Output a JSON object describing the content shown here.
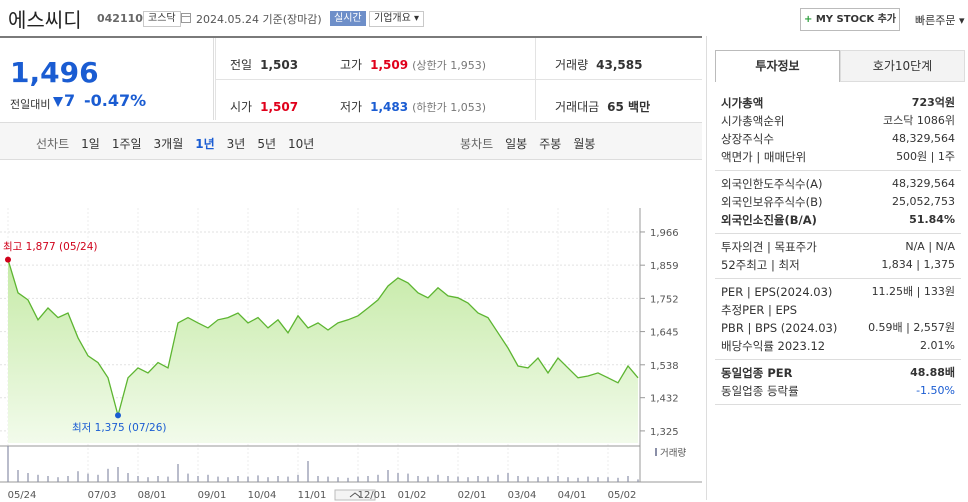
{
  "header": {
    "name": "에스씨디",
    "code": "042110",
    "market": "코스닥",
    "date": "2024.05.24 기준(장마감)",
    "status": "실시간",
    "overview": "기업개요",
    "mystock": "MY STOCK 추가",
    "quick_order": "빠른주문"
  },
  "price": {
    "now": "1,496",
    "change_label": "전일대비",
    "change": "7",
    "rate": "-0.47%"
  },
  "summary": [
    [
      {
        "label": "전일",
        "value": "1,503"
      },
      {
        "label": "고가",
        "value": "1,509",
        "extra": "(상한가 1,953)"
      },
      {
        "label": "거래량",
        "value": "43,585"
      }
    ],
    [
      {
        "label": "시가",
        "value": "1,507"
      },
      {
        "label": "저가",
        "value": "1,483",
        "extra": "(하한가 1,053)"
      },
      {
        "label": "거래대금",
        "value": "65 백만"
      }
    ]
  ],
  "tabs": {
    "line_label": "선차트",
    "line": [
      "1일",
      "1주일",
      "3개월",
      "1년",
      "3년",
      "5년",
      "10년"
    ],
    "candle_label": "봉차트",
    "candle": [
      "일봉",
      "주봉",
      "월봉"
    ]
  },
  "chart": {
    "type": "line",
    "color": "#5db531",
    "categories": [
      "05/24",
      null,
      null,
      null,
      null,
      null,
      null,
      null,
      "07/03",
      null,
      null,
      null,
      null,
      "08/01",
      null,
      null,
      null,
      null,
      null,
      "09/01",
      null,
      null,
      null,
      null,
      "10/04",
      null,
      null,
      null,
      null,
      "11/01",
      null,
      null,
      null,
      null,
      null,
      "12/01",
      null,
      null,
      null,
      "01/02",
      null,
      null,
      null,
      null,
      null,
      "02/01",
      null,
      null,
      null,
      null,
      "03/04",
      null,
      null,
      null,
      null,
      "04/01",
      null,
      null,
      null,
      null,
      "05/02",
      null,
      null,
      null
    ],
    "values": [
      1877,
      1770,
      1747,
      1683,
      1721,
      1690,
      1705,
      1625,
      1567,
      1545,
      1496,
      1375,
      1496,
      1528,
      1512,
      1545,
      1528,
      1673,
      1690,
      1673,
      1657,
      1683,
      1690,
      1705,
      1673,
      1690,
      1657,
      1683,
      1641,
      1696,
      1657,
      1673,
      1650,
      1673,
      1683,
      1696,
      1721,
      1747,
      1792,
      1818,
      1802,
      1770,
      1754,
      1786,
      1760,
      1754,
      1737,
      1705,
      1690,
      1641,
      1592,
      1534,
      1528,
      1560,
      1512,
      1560,
      1528,
      1496,
      1502,
      1512,
      1496,
      1480,
      1534,
      1496
    ],
    "ylim": [
      1286,
      2011
    ],
    "yticks": [
      {
        "value": 1325,
        "label": "1,325"
      },
      {
        "value": 1432,
        "label": "1,432"
      },
      {
        "value": 1538,
        "label": "1,538"
      },
      {
        "value": 1645,
        "label": "1,645"
      },
      {
        "value": 1752,
        "label": "1,752"
      },
      {
        "value": 1859,
        "label": "1,859"
      },
      {
        "value": 1966,
        "label": "1,966"
      }
    ],
    "high_label": "최고 1,877 (05/24)",
    "low_label": "최저 1,375 (07/26)",
    "volume": {
      "name": "거래량",
      "color": "#8a8fa8",
      "values": [
        600000,
        200000,
        150000,
        120000,
        100000,
        80000,
        100000,
        180000,
        140000,
        120000,
        220000,
        250000,
        150000,
        100000,
        80000,
        100000,
        90000,
        300000,
        140000,
        100000,
        120000,
        90000,
        80000,
        100000,
        90000,
        110000,
        80000,
        100000,
        90000,
        120000,
        350000,
        100000,
        90000,
        80000,
        70000,
        90000,
        100000,
        120000,
        200000,
        150000,
        140000,
        100000,
        90000,
        120000,
        100000,
        90000,
        80000,
        100000,
        90000,
        120000,
        150000,
        100000,
        90000,
        80000,
        90000,
        100000,
        80000,
        70000,
        90000,
        80000,
        80000,
        70000,
        100000,
        43585
      ]
    }
  },
  "side": {
    "tabs": [
      "투자정보",
      "호가10단계"
    ],
    "sections": [
      [
        {
          "label": "시가총액",
          "value": "723억원"
        },
        {
          "label": "시가총액순위",
          "value": "코스닥 1086위"
        },
        {
          "label": "상장주식수",
          "value": "48,329,564"
        },
        {
          "label": "액면가 | 매매단위",
          "value": "500원 | 1주"
        }
      ],
      [
        {
          "label": "외국인한도주식수(A)",
          "value": "48,329,564"
        },
        {
          "label": "외국인보유주식수(B)",
          "value": "25,052,753"
        },
        {
          "label": "외국인소진율(B/A)",
          "value": "51.84%"
        }
      ],
      [
        {
          "label": "투자의견 | 목표주가",
          "value": "N/A | N/A"
        },
        {
          "label": "52주최고 | 최저",
          "value": "1,834 | 1,375"
        }
      ],
      [
        {
          "label": "PER | EPS(2024.03)",
          "value": "11.25배 | 133원"
        },
        {
          "label": "추정PER | EPS"
        },
        {
          "label": "PBR | BPS (2024.03)",
          "value": "0.59배 | 2,557원"
        },
        {
          "label": "배당수익률 2023.12",
          "value": "2.01%"
        }
      ],
      [
        {
          "label": "동일업종 PER",
          "value": "48.88배"
        },
        {
          "label": "동일업종 등락률",
          "value": "-1.50%"
        }
      ]
    ]
  }
}
